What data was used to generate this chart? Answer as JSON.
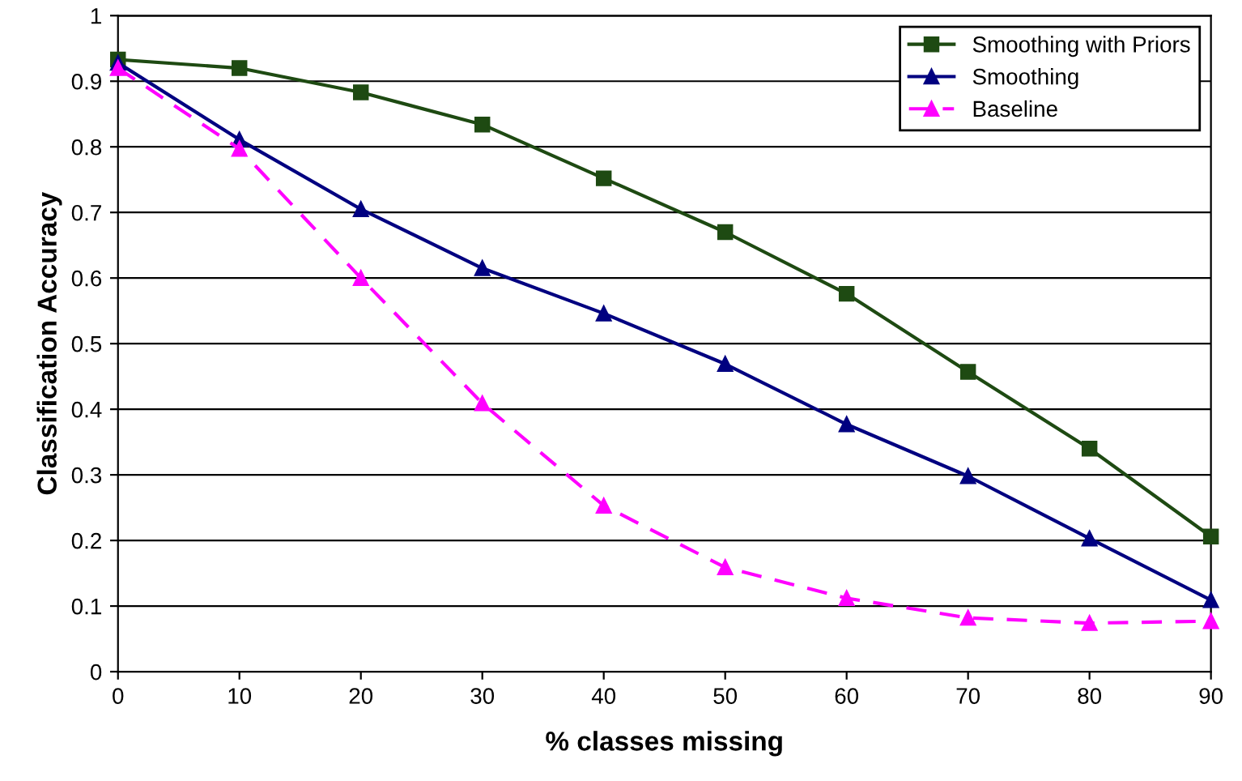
{
  "chart_data": {
    "type": "line",
    "xlabel": "% classes missing",
    "ylabel": "Classification Accuracy",
    "x": [
      0,
      10,
      20,
      30,
      40,
      50,
      60,
      70,
      80,
      90
    ],
    "series": [
      {
        "name": "Smoothing with Priors",
        "color": "#1e4a12",
        "marker": "square",
        "line_style": "solid",
        "values": [
          0.933,
          0.92,
          0.883,
          0.834,
          0.752,
          0.67,
          0.576,
          0.457,
          0.34,
          0.206
        ]
      },
      {
        "name": "Smoothing",
        "color": "#000080",
        "marker": "triangle",
        "line_style": "solid",
        "values": [
          0.928,
          0.811,
          0.705,
          0.615,
          0.546,
          0.469,
          0.377,
          0.298,
          0.203,
          0.109
        ]
      },
      {
        "name": "Baseline",
        "color": "#ff00ff",
        "marker": "triangle",
        "line_style": "dashed",
        "values": [
          0.92,
          0.797,
          0.6,
          0.409,
          0.253,
          0.159,
          0.112,
          0.082,
          0.074,
          0.077
        ]
      }
    ],
    "xlim": [
      0,
      90
    ],
    "ylim": [
      0,
      1
    ],
    "xticks": [
      0,
      10,
      20,
      30,
      40,
      50,
      60,
      70,
      80,
      90
    ],
    "yticks": [
      0,
      0.1,
      0.2,
      0.3,
      0.4,
      0.5,
      0.6,
      0.7,
      0.8,
      0.9,
      1
    ],
    "grid": "y",
    "legend": "top right"
  }
}
